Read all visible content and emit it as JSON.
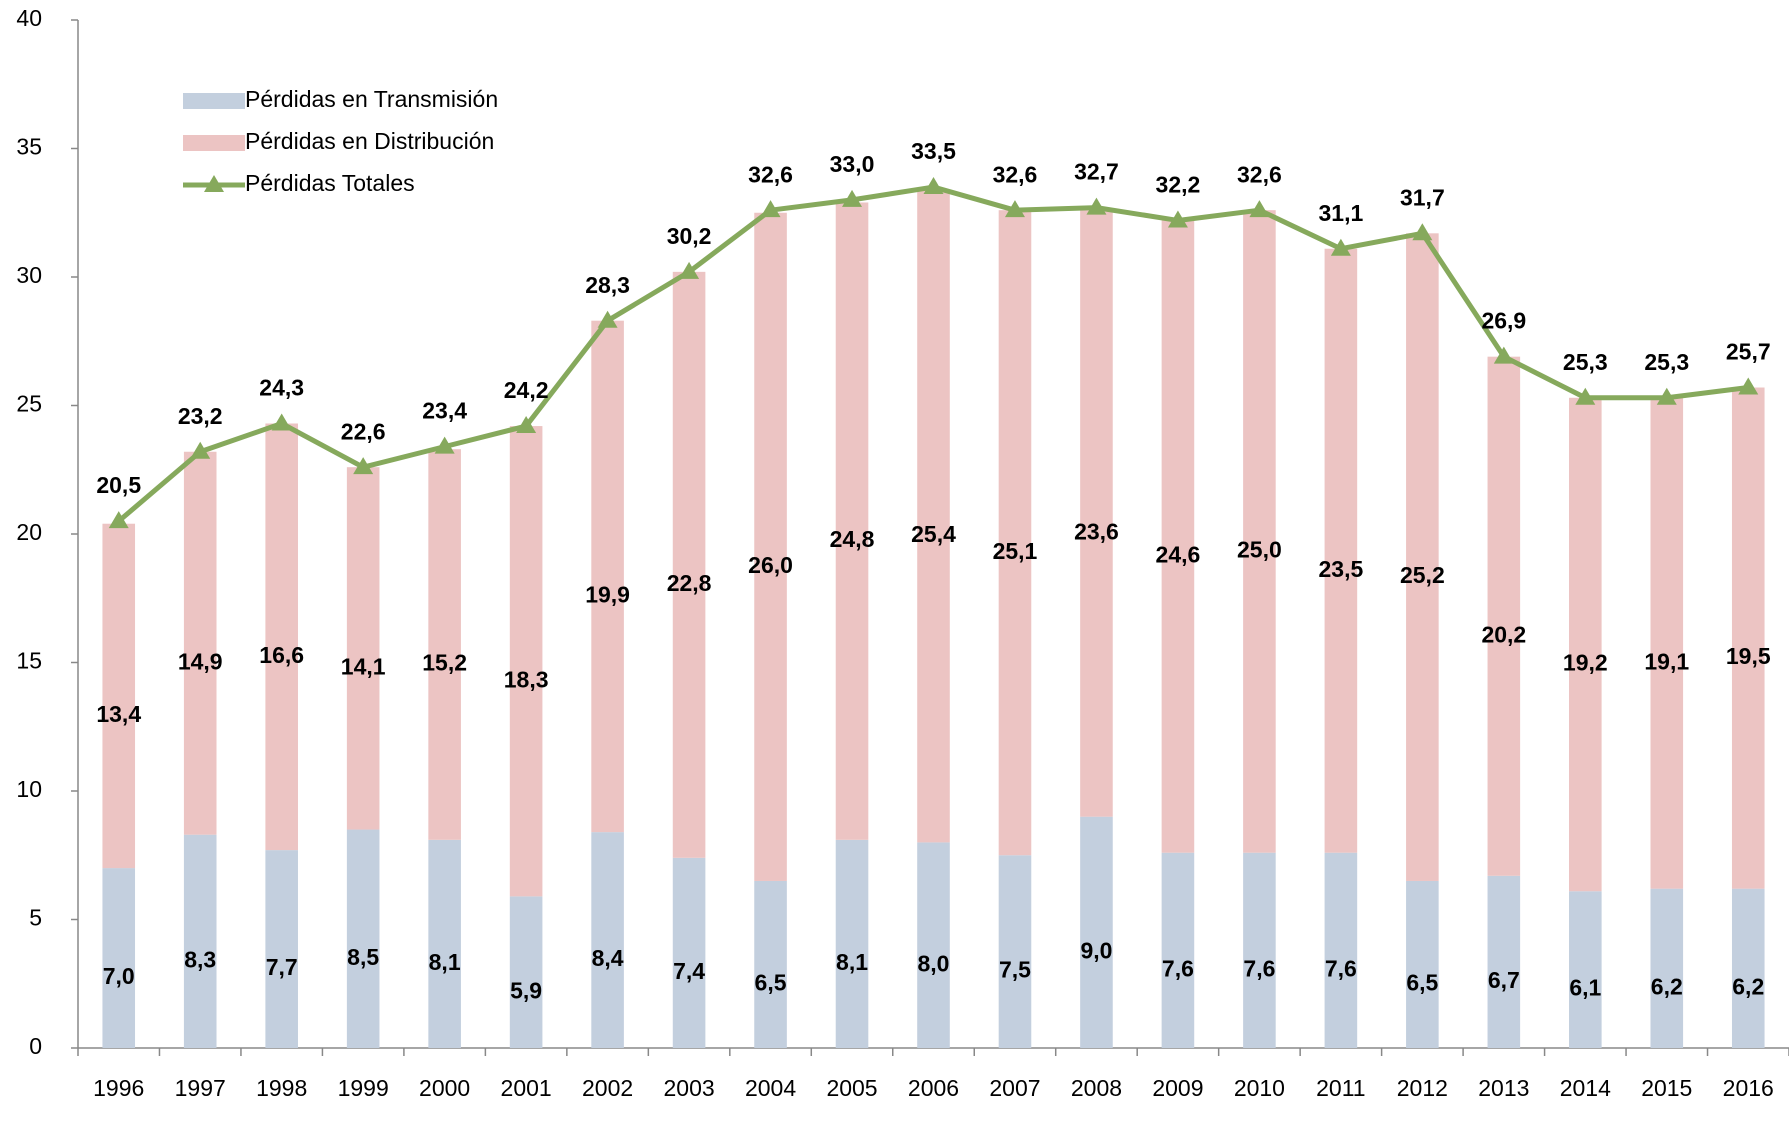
{
  "chart_data": {
    "type": "bar",
    "stacked": true,
    "categories": [
      "1996",
      "1997",
      "1998",
      "1999",
      "2000",
      "2001",
      "2002",
      "2003",
      "2004",
      "2005",
      "2006",
      "2007",
      "2008",
      "2009",
      "2010",
      "2011",
      "2012",
      "2013",
      "2014",
      "2015",
      "2016"
    ],
    "series": [
      {
        "name": "Pérdidas en Transmisión",
        "color": "#c3cfde",
        "values": [
          7.0,
          8.3,
          7.7,
          8.5,
          8.1,
          5.9,
          8.4,
          7.4,
          6.5,
          8.1,
          8.0,
          7.5,
          9.0,
          7.6,
          7.6,
          7.6,
          6.5,
          6.7,
          6.1,
          6.2,
          6.2
        ],
        "value_labels": [
          "7,0",
          "8,3",
          "7,7",
          "8,5",
          "8,1",
          "5,9",
          "8,4",
          "7,4",
          "6,5",
          "8,1",
          "8,0",
          "7,5",
          "9,0",
          "7,6",
          "7,6",
          "7,6",
          "6,5",
          "6,7",
          "6,1",
          "6,2",
          "6,2"
        ]
      },
      {
        "name": "Pérdidas en Distribución",
        "color": "#ecc4c3",
        "values": [
          13.4,
          14.9,
          16.6,
          14.1,
          15.2,
          18.3,
          19.9,
          22.8,
          26.0,
          24.8,
          25.4,
          25.1,
          23.6,
          24.6,
          25.0,
          23.5,
          25.2,
          20.2,
          19.2,
          19.1,
          19.5
        ],
        "value_labels": [
          "13,4",
          "14,9",
          "16,6",
          "14,1",
          "15,2",
          "18,3",
          "19,9",
          "22,8",
          "26,0",
          "24,8",
          "25,4",
          "25,1",
          "23,6",
          "24,6",
          "25,0",
          "23,5",
          "25,2",
          "20,2",
          "19,2",
          "19,1",
          "19,5"
        ]
      },
      {
        "name": "Pérdidas Totales",
        "type": "line",
        "color": "#86a95c",
        "values": [
          20.5,
          23.2,
          24.3,
          22.6,
          23.4,
          24.2,
          28.3,
          30.2,
          32.6,
          33.0,
          33.5,
          32.6,
          32.7,
          32.2,
          32.6,
          31.1,
          31.7,
          26.9,
          25.3,
          25.3,
          25.7
        ],
        "value_labels": [
          "20,5",
          "23,2",
          "24,3",
          "22,6",
          "23,4",
          "24,2",
          "28,3",
          "30,2",
          "32,6",
          "33,0",
          "33,5",
          "32,6",
          "32,7",
          "32,2",
          "32,6",
          "31,1",
          "31,7",
          "26,9",
          "25,3",
          "25,3",
          "25,7"
        ]
      }
    ],
    "ylim": [
      0,
      40
    ],
    "yticks": [
      0,
      5,
      10,
      15,
      20,
      25,
      30,
      35,
      40
    ],
    "legend": "upper left"
  }
}
